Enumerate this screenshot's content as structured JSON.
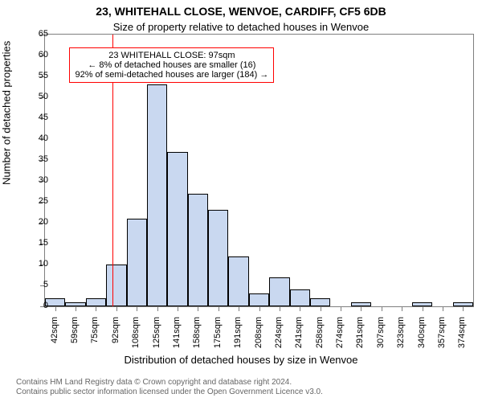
{
  "title_line1": "23, WHITEHALL CLOSE, WENVOE, CARDIFF, CF5 6DB",
  "title_line2": "Size of property relative to detached houses in Wenvoe",
  "ylabel": "Number of detached properties",
  "xlabel": "Distribution of detached houses by size in Wenvoe",
  "footer_line1": "Contains HM Land Registry data © Crown copyright and database right 2024.",
  "footer_line2": "Contains public sector information licensed under the Open Government Licence v3.0.",
  "chart": {
    "type": "histogram",
    "ylim": [
      0,
      65
    ],
    "ytick_step": 5,
    "yticks": [
      0,
      5,
      10,
      15,
      20,
      25,
      30,
      35,
      40,
      45,
      50,
      55,
      60,
      65
    ],
    "categories": [
      "42sqm",
      "59sqm",
      "75sqm",
      "92sqm",
      "108sqm",
      "125sqm",
      "141sqm",
      "158sqm",
      "175sqm",
      "191sqm",
      "208sqm",
      "224sqm",
      "241sqm",
      "258sqm",
      "274sqm",
      "291sqm",
      "307sqm",
      "323sqm",
      "340sqm",
      "357sqm",
      "374sqm"
    ],
    "values": [
      2,
      1,
      2,
      10,
      21,
      53,
      37,
      27,
      23,
      12,
      3,
      7,
      4,
      2,
      0,
      1,
      0,
      0,
      1,
      0,
      1
    ],
    "bar_fill": "#c9d8f0",
    "bar_stroke": "#000000",
    "bar_width_ratio": 1.0,
    "bar_stroke_width": 0.5,
    "axis_color": "#7f7f7f",
    "tick_fontsize": 11,
    "label_fontsize": 13,
    "title1_fontsize": 14,
    "title2_fontsize": 13,
    "footer_fontsize": 10,
    "marker_color": "#ff0000",
    "marker_width": 1.5,
    "marker_position": 3.3,
    "annotation": {
      "lines": [
        "23 WHITEHALL CLOSE: 97sqm",
        "← 8% of detached houses are smaller (16)",
        "92% of semi-detached houses are larger (184) →"
      ],
      "border_color": "#ff0000",
      "fontsize": 11,
      "left_bin_index": 1.2,
      "top_value": 62
    }
  }
}
